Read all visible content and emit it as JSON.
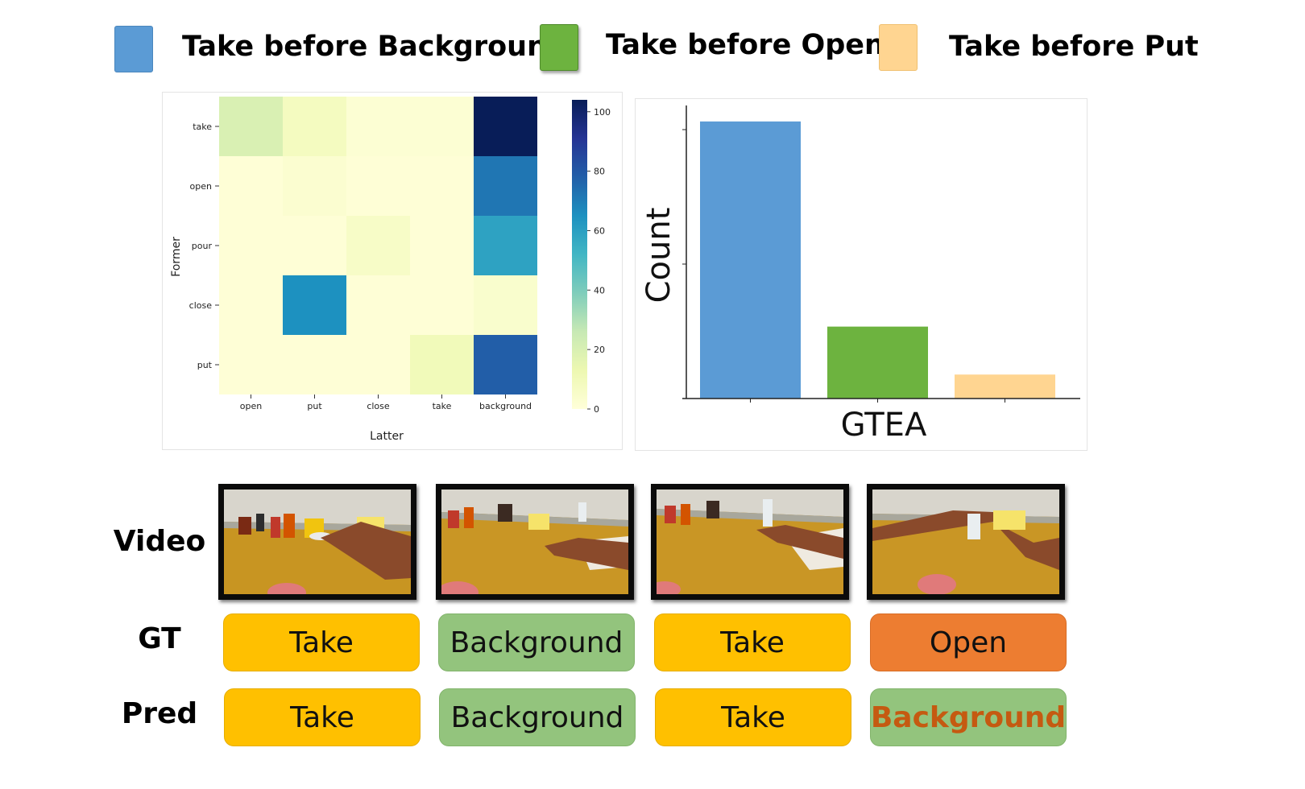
{
  "legend": {
    "items": [
      {
        "label": "Take before Background",
        "color": "#5b9bd5"
      },
      {
        "label": "Take before Open",
        "color": "#6db33f"
      },
      {
        "label": "Take before Put",
        "color": "#ffd591"
      }
    ]
  },
  "chart_data": [
    {
      "type": "heatmap",
      "xlabel": "Latter",
      "ylabel": "Former",
      "x_categories": [
        "open",
        "put",
        "close",
        "take",
        "background"
      ],
      "y_categories": [
        "take",
        "open",
        "pour",
        "close",
        "put"
      ],
      "values": [
        [
          20,
          8,
          2,
          2,
          104
        ],
        [
          1,
          3,
          1,
          1,
          72
        ],
        [
          1,
          1,
          6,
          1,
          59
        ],
        [
          1,
          65,
          1,
          1,
          4
        ],
        [
          1,
          1,
          1,
          10,
          78
        ]
      ],
      "colorbar": {
        "min": 0,
        "max": 104,
        "ticks": [
          0,
          20,
          40,
          60,
          80,
          100
        ],
        "colormap": "YlGnBu"
      }
    },
    {
      "type": "bar",
      "xlabel": "GTEA",
      "ylabel": "Count",
      "categories": [
        "Take before Background",
        "Take before Open",
        "Take before Put"
      ],
      "values": [
        104,
        27,
        9
      ],
      "colors": [
        "#5b9bd5",
        "#6db33f",
        "#ffd591"
      ],
      "ylim": [
        0,
        110
      ]
    }
  ],
  "video_row": {
    "labels": {
      "video": "Video",
      "gt": "GT",
      "pred": "Pred"
    },
    "gt": [
      "Take",
      "Background",
      "Take",
      "Open"
    ],
    "pred": [
      "Take",
      "Background",
      "Take",
      "Background"
    ]
  }
}
